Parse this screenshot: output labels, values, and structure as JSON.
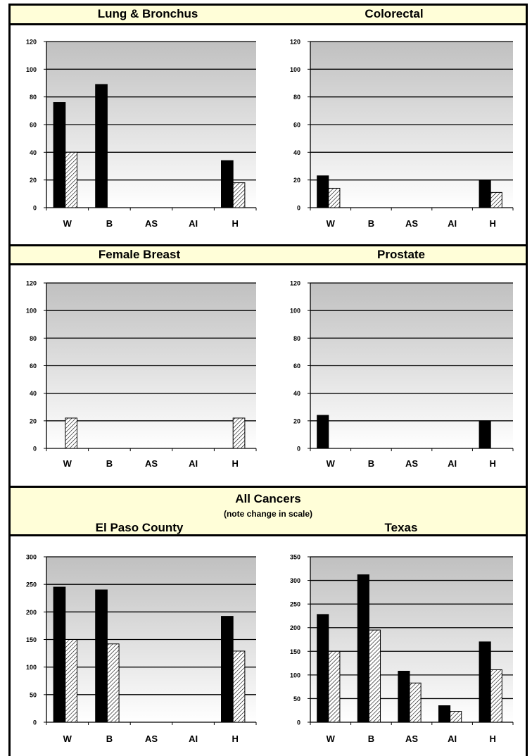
{
  "categories_legend_note": "",
  "headers": {
    "lung": "Lung & Bronchus",
    "colorectal": "Colorectal",
    "female_breast": "Female Breast",
    "prostate": "Prostate",
    "all_cancers": "All Cancers",
    "scale_note": "(note change in scale)",
    "el_paso": "El Paso County",
    "texas": "Texas"
  },
  "colors": {
    "band": "#fffed8",
    "bar_solid": "#000000",
    "bar_hatch": "#ffffff",
    "plot_top": "#c0c0c0",
    "plot_bottom": "#ffffff"
  },
  "chart_data": [
    {
      "type": "bar",
      "id": "lung",
      "categories": [
        "W",
        "B",
        "AS",
        "AI",
        "H"
      ],
      "ylim": [
        0,
        120
      ],
      "yticks": [
        0,
        20,
        40,
        60,
        80,
        100,
        120
      ],
      "series": [
        {
          "style": "solid",
          "values": [
            76,
            89,
            null,
            null,
            34
          ]
        },
        {
          "style": "hatched",
          "values": [
            40,
            null,
            null,
            null,
            18
          ]
        }
      ]
    },
    {
      "type": "bar",
      "id": "colorectal",
      "categories": [
        "W",
        "B",
        "AS",
        "AI",
        "H"
      ],
      "ylim": [
        0,
        120
      ],
      "yticks": [
        0,
        20,
        40,
        60,
        80,
        100,
        120
      ],
      "series": [
        {
          "style": "solid",
          "values": [
            23,
            null,
            null,
            null,
            20
          ]
        },
        {
          "style": "hatched",
          "values": [
            14,
            null,
            null,
            null,
            11
          ]
        }
      ]
    },
    {
      "type": "bar",
      "id": "female_breast",
      "categories": [
        "W",
        "B",
        "AS",
        "AI",
        "H"
      ],
      "ylim": [
        0,
        120
      ],
      "yticks": [
        0,
        20,
        40,
        60,
        80,
        100,
        120
      ],
      "series": [
        {
          "style": "solid",
          "values": [
            null,
            null,
            null,
            null,
            null
          ]
        },
        {
          "style": "hatched",
          "values": [
            22,
            null,
            null,
            null,
            22
          ]
        }
      ]
    },
    {
      "type": "bar",
      "id": "prostate",
      "categories": [
        "W",
        "B",
        "AS",
        "AI",
        "H"
      ],
      "ylim": [
        0,
        120
      ],
      "yticks": [
        0,
        20,
        40,
        60,
        80,
        100,
        120
      ],
      "series": [
        {
          "style": "solid",
          "values": [
            24,
            null,
            null,
            null,
            20
          ]
        },
        {
          "style": "hatched",
          "values": [
            null,
            null,
            null,
            null,
            null
          ]
        }
      ]
    },
    {
      "type": "bar",
      "id": "all_el_paso",
      "categories": [
        "W",
        "B",
        "AS",
        "AI",
        "H"
      ],
      "ylim": [
        0,
        300
      ],
      "yticks": [
        0,
        50,
        100,
        150,
        200,
        250,
        300
      ],
      "series": [
        {
          "style": "solid",
          "values": [
            245,
            240,
            null,
            null,
            192
          ]
        },
        {
          "style": "hatched",
          "values": [
            150,
            142,
            null,
            null,
            129
          ]
        }
      ]
    },
    {
      "type": "bar",
      "id": "all_texas",
      "categories": [
        "W",
        "B",
        "AS",
        "AI",
        "H"
      ],
      "ylim": [
        0,
        350
      ],
      "yticks": [
        0,
        50,
        100,
        150,
        200,
        250,
        300,
        350
      ],
      "series": [
        {
          "style": "solid",
          "values": [
            228,
            312,
            108,
            35,
            170
          ]
        },
        {
          "style": "hatched",
          "values": [
            150,
            195,
            83,
            23,
            111
          ]
        }
      ]
    }
  ]
}
